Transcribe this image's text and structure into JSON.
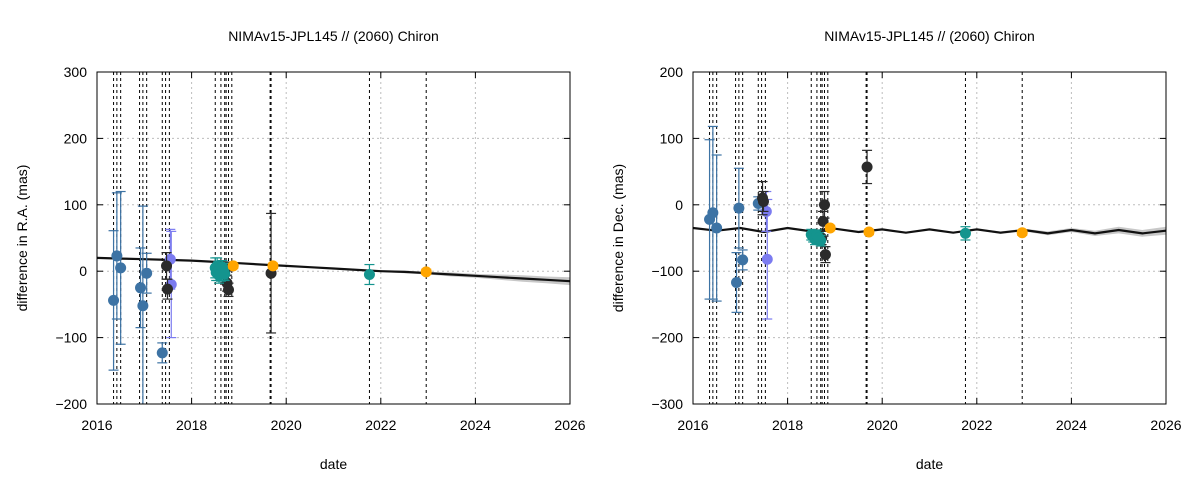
{
  "chart_data": [
    {
      "type": "scatter",
      "title": "NIMAv15-JPL145 // (2060) Chiron",
      "xlabel": "date",
      "ylabel": "difference in R.A. (mas)",
      "xlim": [
        2016,
        2026
      ],
      "ylim": [
        -200,
        300
      ],
      "xticks": [
        "2016",
        "2018",
        "2020",
        "2022",
        "2024",
        "2026"
      ],
      "yticks": [
        "−200",
        "−100",
        "0",
        "100",
        "200",
        "300"
      ],
      "grid": "dotted",
      "ephemeris_band": {
        "x": [
          2016.0,
          2016.5,
          2017.0,
          2017.5,
          2018.0,
          2018.5,
          2019.0,
          2019.5,
          2020.0,
          2020.5,
          2021.0,
          2021.5,
          2022.0,
          2022.5,
          2023.0,
          2023.5,
          2024.0,
          2024.5,
          2025.0,
          2025.5,
          2026.0
        ],
        "y": [
          20,
          19,
          18,
          17,
          16,
          14,
          12,
          10,
          8,
          6,
          4,
          2,
          0,
          -1,
          -3,
          -5,
          -7,
          -9,
          -11,
          -13,
          -15
        ],
        "halfwidth": [
          1,
          1,
          1,
          1,
          1,
          1,
          1,
          1,
          1,
          1,
          1,
          1,
          1,
          2,
          2,
          3,
          3,
          4,
          5,
          5,
          6
        ]
      },
      "vlines": [
        2016.35,
        2016.42,
        2016.5,
        2016.9,
        2016.97,
        2017.05,
        2017.38,
        2017.45,
        2017.53,
        2018.5,
        2018.62,
        2018.7,
        2018.73,
        2018.78,
        2018.85,
        2019.66,
        2019.68,
        2021.76,
        2022.96
      ],
      "series": [
        {
          "color": "#3d73a4",
          "points": [
            {
              "x": 2016.35,
              "y": -44,
              "err": 105
            },
            {
              "x": 2016.42,
              "y": 23,
              "err": 95
            },
            {
              "x": 2016.5,
              "y": 5,
              "err": 115
            },
            {
              "x": 2016.92,
              "y": -25,
              "err": 60
            },
            {
              "x": 2016.97,
              "y": -52,
              "err": 150
            },
            {
              "x": 2017.05,
              "y": -3,
              "err": 30
            },
            {
              "x": 2017.38,
              "y": -123,
              "err": 15
            }
          ]
        },
        {
          "color": "#7b7bf0",
          "points": [
            {
              "x": 2017.55,
              "y": 18,
              "err": 45
            },
            {
              "x": 2017.57,
              "y": -20,
              "err": 80
            }
          ]
        },
        {
          "color": "#2b2b2b",
          "points": [
            {
              "x": 2017.47,
              "y": 8,
              "err": 20
            },
            {
              "x": 2017.49,
              "y": -27,
              "err": 15
            },
            {
              "x": 2018.72,
              "y": 3,
              "err": 10
            },
            {
              "x": 2018.75,
              "y": -18,
              "err": 12
            },
            {
              "x": 2018.78,
              "y": -28,
              "err": 10
            },
            {
              "x": 2019.68,
              "y": -3,
              "err": 90
            }
          ]
        },
        {
          "color": "#14948e",
          "points": [
            {
              "x": 2018.5,
              "y": 5,
              "err": 15
            },
            {
              "x": 2018.52,
              "y": -2,
              "err": 12
            },
            {
              "x": 2018.54,
              "y": 8,
              "err": 12
            },
            {
              "x": 2018.56,
              "y": 0,
              "err": 14
            },
            {
              "x": 2018.58,
              "y": -6,
              "err": 12
            },
            {
              "x": 2018.6,
              "y": 3,
              "err": 10
            },
            {
              "x": 2018.62,
              "y": -3,
              "err": 12
            },
            {
              "x": 2018.65,
              "y": 6,
              "err": 10
            },
            {
              "x": 2018.68,
              "y": 0,
              "err": 12
            },
            {
              "x": 2018.7,
              "y": -4,
              "err": 10
            },
            {
              "x": 2021.76,
              "y": -5,
              "err": 15
            }
          ]
        },
        {
          "color": "#ffa500",
          "points": [
            {
              "x": 2018.88,
              "y": 8,
              "err": 4
            },
            {
              "x": 2019.72,
              "y": 8,
              "err": 4
            },
            {
              "x": 2022.96,
              "y": -1,
              "err": 4
            }
          ]
        }
      ]
    },
    {
      "type": "scatter",
      "title": "NIMAv15-JPL145 // (2060) Chiron",
      "xlabel": "date",
      "ylabel": "difference in Dec. (mas)",
      "xlim": [
        2016,
        2026
      ],
      "ylim": [
        -300,
        200
      ],
      "xticks": [
        "2016",
        "2018",
        "2020",
        "2022",
        "2024",
        "2026"
      ],
      "yticks": [
        "−300",
        "−200",
        "−100",
        "0",
        "100",
        "200"
      ],
      "grid": "dotted",
      "ephemeris_band": {
        "x": [
          2016.0,
          2016.5,
          2017.0,
          2017.5,
          2018.0,
          2018.5,
          2019.0,
          2019.5,
          2020.0,
          2020.5,
          2021.0,
          2021.5,
          2022.0,
          2022.5,
          2023.0,
          2023.5,
          2024.0,
          2024.5,
          2025.0,
          2025.5,
          2026.0
        ],
        "y": [
          -35,
          -39,
          -35,
          -41,
          -35,
          -40,
          -36,
          -41,
          -37,
          -42,
          -37,
          -42,
          -37,
          -42,
          -38,
          -43,
          -38,
          -43,
          -38,
          -43,
          -39
        ],
        "halfwidth": [
          1,
          1,
          1,
          1,
          1,
          1,
          1,
          1,
          1,
          1,
          1,
          1,
          1,
          2,
          2,
          3,
          3,
          4,
          5,
          5,
          6
        ]
      },
      "vlines": [
        2016.35,
        2016.42,
        2016.5,
        2016.9,
        2016.97,
        2017.05,
        2017.38,
        2017.45,
        2017.53,
        2018.5,
        2018.62,
        2018.7,
        2018.73,
        2018.78,
        2018.85,
        2019.66,
        2019.68,
        2021.76,
        2022.96
      ],
      "series": [
        {
          "color": "#3d73a4",
          "points": [
            {
              "x": 2016.35,
              "y": -22,
              "err": 120
            },
            {
              "x": 2016.42,
              "y": -12,
              "err": 130
            },
            {
              "x": 2016.5,
              "y": -35,
              "err": 110
            },
            {
              "x": 2016.92,
              "y": -117,
              "err": 45
            },
            {
              "x": 2016.97,
              "y": -5,
              "err": 60
            },
            {
              "x": 2017.05,
              "y": -83,
              "err": 15
            },
            {
              "x": 2017.38,
              "y": 2,
              "err": 10
            }
          ]
        },
        {
          "color": "#7b7bf0",
          "points": [
            {
              "x": 2017.55,
              "y": -10,
              "err": 30
            },
            {
              "x": 2017.57,
              "y": -82,
              "err": 90
            }
          ]
        },
        {
          "color": "#2b2b2b",
          "points": [
            {
              "x": 2017.47,
              "y": 10,
              "err": 25
            },
            {
              "x": 2017.49,
              "y": 5,
              "err": 15
            },
            {
              "x": 2018.72,
              "y": -50,
              "err": 10
            },
            {
              "x": 2018.75,
              "y": -25,
              "err": 15
            },
            {
              "x": 2018.78,
              "y": 0,
              "err": 20
            },
            {
              "x": 2018.8,
              "y": -75,
              "err": 12
            },
            {
              "x": 2019.68,
              "y": 57,
              "err": 25
            }
          ]
        },
        {
          "color": "#14948e",
          "points": [
            {
              "x": 2018.5,
              "y": -45,
              "err": 8
            },
            {
              "x": 2018.54,
              "y": -48,
              "err": 8
            },
            {
              "x": 2018.58,
              "y": -52,
              "err": 8
            },
            {
              "x": 2018.62,
              "y": -46,
              "err": 8
            },
            {
              "x": 2018.66,
              "y": -50,
              "err": 8
            },
            {
              "x": 2018.7,
              "y": -54,
              "err": 8
            },
            {
              "x": 2021.76,
              "y": -43,
              "err": 10
            }
          ]
        },
        {
          "color": "#ffa500",
          "points": [
            {
              "x": 2018.9,
              "y": -35,
              "err": 4
            },
            {
              "x": 2019.72,
              "y": -41,
              "err": 4
            },
            {
              "x": 2022.96,
              "y": -42,
              "err": 4
            }
          ]
        }
      ]
    }
  ]
}
